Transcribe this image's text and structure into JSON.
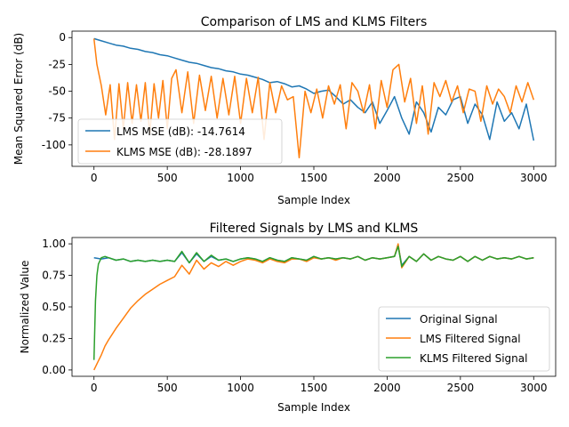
{
  "chart_data": [
    {
      "type": "line",
      "title": "Comparison of LMS and KLMS Filters",
      "xlabel": "Sample Index",
      "ylabel": "Mean Squared Error (dB)",
      "xlim": [
        -150,
        3150
      ],
      "ylim": [
        -120,
        6
      ],
      "xticks": [
        0,
        500,
        1000,
        1500,
        2000,
        2500,
        3000
      ],
      "yticks": [
        0,
        -25,
        -50,
        -75,
        -100
      ],
      "grid": false,
      "legend_position": "lower-left",
      "series": [
        {
          "name": "LMS MSE (dB): -14.7614",
          "color": "#1f77b4",
          "x": [
            0,
            50,
            100,
            150,
            200,
            250,
            300,
            350,
            400,
            450,
            500,
            550,
            600,
            650,
            700,
            750,
            800,
            850,
            900,
            950,
            1000,
            1050,
            1100,
            1150,
            1200,
            1250,
            1300,
            1350,
            1400,
            1450,
            1500,
            1550,
            1600,
            1650,
            1700,
            1750,
            1800,
            1850,
            1900,
            1950,
            2000,
            2050,
            2100,
            2150,
            2200,
            2250,
            2300,
            2350,
            2400,
            2450,
            2500,
            2550,
            2600,
            2650,
            2700,
            2750,
            2800,
            2850,
            2900,
            2950,
            3000
          ],
          "y": [
            -1,
            -3,
            -5,
            -7,
            -8,
            -10,
            -11,
            -13,
            -14,
            -16,
            -17,
            -19,
            -21,
            -23,
            -24,
            -26,
            -28,
            -29,
            -31,
            -32,
            -34,
            -35,
            -37,
            -39,
            -42,
            -41,
            -43,
            -46,
            -45,
            -48,
            -52,
            -50,
            -49,
            -55,
            -62,
            -58,
            -65,
            -70,
            -60,
            -80,
            -68,
            -55,
            -75,
            -90,
            -60,
            -70,
            -88,
            -65,
            -72,
            -58,
            -55,
            -80,
            -62,
            -72,
            -95,
            -60,
            -78,
            -70,
            -85,
            -62,
            -96
          ]
        },
        {
          "name": "KLMS MSE (dB): -28.1897",
          "color": "#ff7f0e",
          "x": [
            0,
            20,
            50,
            80,
            110,
            140,
            170,
            200,
            230,
            260,
            290,
            320,
            350,
            380,
            410,
            440,
            470,
            500,
            530,
            560,
            600,
            640,
            680,
            720,
            760,
            800,
            840,
            880,
            920,
            960,
            1000,
            1040,
            1080,
            1120,
            1160,
            1200,
            1240,
            1280,
            1320,
            1360,
            1400,
            1440,
            1480,
            1520,
            1560,
            1600,
            1640,
            1680,
            1720,
            1760,
            1800,
            1840,
            1880,
            1920,
            1960,
            2000,
            2040,
            2080,
            2120,
            2160,
            2200,
            2240,
            2280,
            2320,
            2360,
            2400,
            2440,
            2480,
            2520,
            2560,
            2600,
            2640,
            2680,
            2720,
            2760,
            2800,
            2840,
            2880,
            2920,
            2960,
            3000
          ],
          "y": [
            -1,
            -25,
            -45,
            -72,
            -44,
            -95,
            -43,
            -85,
            -42,
            -80,
            -44,
            -78,
            -42,
            -90,
            -43,
            -75,
            -40,
            -85,
            -38,
            -30,
            -70,
            -32,
            -80,
            -35,
            -68,
            -36,
            -75,
            -38,
            -72,
            -36,
            -80,
            -38,
            -70,
            -37,
            -95,
            -42,
            -70,
            -45,
            -58,
            -55,
            -112,
            -50,
            -70,
            -48,
            -75,
            -45,
            -62,
            -44,
            -85,
            -42,
            -50,
            -70,
            -44,
            -85,
            -40,
            -65,
            -30,
            -25,
            -60,
            -38,
            -80,
            -45,
            -90,
            -42,
            -55,
            -40,
            -60,
            -45,
            -70,
            -48,
            -50,
            -78,
            -45,
            -62,
            -48,
            -55,
            -70,
            -45,
            -60,
            -42,
            -58
          ]
        }
      ]
    },
    {
      "type": "line",
      "title": "Filtered Signals by LMS and KLMS",
      "xlabel": "Sample Index",
      "ylabel": "Normalized Value",
      "xlim": [
        -150,
        3150
      ],
      "ylim": [
        -0.05,
        1.05
      ],
      "xticks": [
        0,
        500,
        1000,
        1500,
        2000,
        2500,
        3000
      ],
      "yticks": [
        0.0,
        0.25,
        0.5,
        0.75,
        1.0
      ],
      "ytick_labels": [
        "0.00",
        "0.25",
        "0.50",
        "0.75",
        "1.00"
      ],
      "grid": false,
      "legend_position": "lower-right",
      "series": [
        {
          "name": "Original Signal",
          "color": "#1f77b4",
          "x": [
            0,
            50,
            100,
            150,
            200,
            250,
            300,
            350,
            400,
            450,
            500,
            550,
            600,
            650,
            700,
            750,
            800,
            850,
            900,
            950,
            1000,
            1050,
            1100,
            1150,
            1200,
            1250,
            1300,
            1350,
            1400,
            1450,
            1500,
            1550,
            1600,
            1650,
            1700,
            1750,
            1800,
            1850,
            1900,
            1950,
            2000,
            2050,
            2075,
            2100,
            2150,
            2200,
            2250,
            2300,
            2350,
            2400,
            2450,
            2500,
            2550,
            2600,
            2650,
            2700,
            2750,
            2800,
            2850,
            2900,
            2950,
            3000
          ],
          "y": [
            0.89,
            0.88,
            0.89,
            0.87,
            0.88,
            0.86,
            0.87,
            0.86,
            0.87,
            0.86,
            0.87,
            0.86,
            0.93,
            0.85,
            0.92,
            0.86,
            0.9,
            0.87,
            0.88,
            0.86,
            0.88,
            0.89,
            0.88,
            0.86,
            0.89,
            0.87,
            0.86,
            0.89,
            0.88,
            0.87,
            0.9,
            0.88,
            0.89,
            0.88,
            0.89,
            0.88,
            0.9,
            0.87,
            0.89,
            0.88,
            0.89,
            0.9,
            0.99,
            0.83,
            0.9,
            0.86,
            0.92,
            0.87,
            0.9,
            0.88,
            0.87,
            0.9,
            0.86,
            0.9,
            0.87,
            0.9,
            0.88,
            0.89,
            0.88,
            0.9,
            0.88,
            0.89
          ]
        },
        {
          "name": "LMS Filtered Signal",
          "color": "#ff7f0e",
          "x": [
            0,
            25,
            50,
            75,
            100,
            150,
            200,
            250,
            300,
            350,
            400,
            450,
            500,
            550,
            600,
            650,
            700,
            750,
            800,
            850,
            900,
            950,
            1000,
            1050,
            1100,
            1150,
            1200,
            1250,
            1300,
            1350,
            1400,
            1450,
            1500,
            1550,
            1600,
            1650,
            1700,
            1750,
            1800,
            1850,
            1900,
            1950,
            2000,
            2050,
            2075,
            2100,
            2150,
            2200,
            2250,
            2300,
            2350,
            2400,
            2450,
            2500,
            2550,
            2600,
            2650,
            2700,
            2750,
            2800,
            2850,
            2900,
            2950,
            3000
          ],
          "y": [
            0.0,
            0.06,
            0.12,
            0.19,
            0.24,
            0.33,
            0.41,
            0.49,
            0.55,
            0.6,
            0.64,
            0.68,
            0.71,
            0.74,
            0.83,
            0.76,
            0.87,
            0.8,
            0.85,
            0.82,
            0.86,
            0.83,
            0.86,
            0.88,
            0.87,
            0.85,
            0.88,
            0.86,
            0.85,
            0.88,
            0.88,
            0.86,
            0.89,
            0.88,
            0.89,
            0.87,
            0.89,
            0.88,
            0.9,
            0.87,
            0.89,
            0.88,
            0.89,
            0.9,
            1.0,
            0.81,
            0.9,
            0.86,
            0.92,
            0.87,
            0.9,
            0.88,
            0.87,
            0.9,
            0.86,
            0.9,
            0.87,
            0.9,
            0.88,
            0.89,
            0.88,
            0.9,
            0.88,
            0.89
          ]
        },
        {
          "name": "KLMS Filtered Signal",
          "color": "#2ca02c",
          "x": [
            0,
            10,
            20,
            30,
            50,
            75,
            100,
            150,
            200,
            250,
            300,
            350,
            400,
            450,
            500,
            550,
            600,
            650,
            700,
            750,
            800,
            850,
            900,
            950,
            1000,
            1050,
            1100,
            1150,
            1200,
            1250,
            1300,
            1350,
            1400,
            1450,
            1500,
            1550,
            1600,
            1650,
            1700,
            1750,
            1800,
            1850,
            1900,
            1950,
            2000,
            2050,
            2075,
            2100,
            2150,
            2200,
            2250,
            2300,
            2350,
            2400,
            2450,
            2500,
            2550,
            2600,
            2650,
            2700,
            2750,
            2800,
            2850,
            2900,
            2950,
            3000
          ],
          "y": [
            0.08,
            0.55,
            0.75,
            0.84,
            0.89,
            0.9,
            0.89,
            0.87,
            0.88,
            0.86,
            0.87,
            0.86,
            0.87,
            0.86,
            0.87,
            0.86,
            0.94,
            0.85,
            0.93,
            0.86,
            0.91,
            0.87,
            0.88,
            0.86,
            0.88,
            0.89,
            0.88,
            0.86,
            0.89,
            0.87,
            0.86,
            0.89,
            0.88,
            0.87,
            0.9,
            0.88,
            0.89,
            0.88,
            0.89,
            0.88,
            0.9,
            0.87,
            0.89,
            0.88,
            0.89,
            0.9,
            0.98,
            0.82,
            0.9,
            0.86,
            0.92,
            0.87,
            0.9,
            0.88,
            0.87,
            0.9,
            0.86,
            0.9,
            0.87,
            0.9,
            0.88,
            0.89,
            0.88,
            0.9,
            0.88,
            0.89
          ]
        }
      ]
    }
  ]
}
